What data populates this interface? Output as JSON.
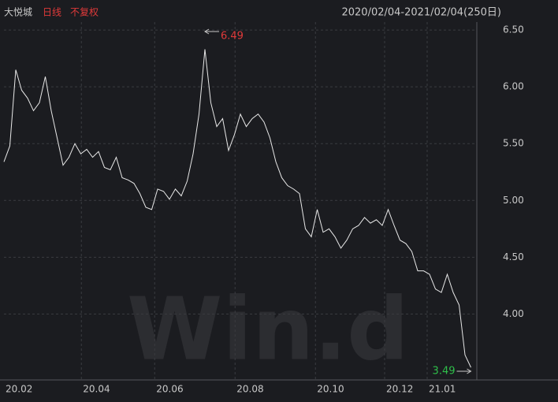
{
  "header": {
    "name": "大悦城",
    "period": "日线",
    "adjust": "不复权",
    "range": "2020/02/04-2021/02/04(250日)"
  },
  "watermark": "Win.d",
  "chart_data": {
    "type": "line",
    "grid": true,
    "color": "#e8e8e8",
    "max_label": "6.49",
    "min_label": "3.49",
    "values": [
      5.34,
      5.48,
      6.15,
      5.97,
      5.9,
      5.79,
      5.86,
      6.09,
      5.79,
      5.55,
      5.31,
      5.38,
      5.5,
      5.41,
      5.45,
      5.38,
      5.43,
      5.29,
      5.27,
      5.38,
      5.2,
      5.18,
      5.15,
      5.06,
      4.94,
      4.92,
      5.1,
      5.08,
      5.01,
      5.1,
      5.04,
      5.17,
      5.41,
      5.76,
      6.33,
      5.86,
      5.65,
      5.72,
      5.44,
      5.58,
      5.76,
      5.65,
      5.72,
      5.76,
      5.69,
      5.55,
      5.34,
      5.2,
      5.13,
      5.1,
      5.06,
      4.75,
      4.68,
      4.92,
      4.72,
      4.75,
      4.68,
      4.58,
      4.65,
      4.75,
      4.78,
      4.85,
      4.8,
      4.83,
      4.78,
      4.92,
      4.78,
      4.65,
      4.62,
      4.55,
      4.38,
      4.38,
      4.35,
      4.22,
      4.19,
      4.35,
      4.19,
      4.08,
      3.64,
      3.53
    ],
    "xlim": [
      0,
      80
    ],
    "xticks": [
      {
        "value": 0,
        "label": "20.02"
      },
      {
        "value": 13.1,
        "label": "20.04"
      },
      {
        "value": 25.5,
        "label": "20.06"
      },
      {
        "value": 39.1,
        "label": "20.08"
      },
      {
        "value": 52.7,
        "label": "20.10"
      },
      {
        "value": 64.4,
        "label": "20.12"
      },
      {
        "value": 71.6,
        "label": "21.01"
      }
    ],
    "ylim": [
      3.42,
      6.57
    ],
    "yticks": [
      {
        "value": 4.0,
        "label": "4.00"
      },
      {
        "value": 4.5,
        "label": "4.50"
      },
      {
        "value": 5.0,
        "label": "5.00"
      },
      {
        "value": 5.5,
        "label": "5.50"
      },
      {
        "value": 6.0,
        "label": "6.00"
      },
      {
        "value": 6.5,
        "label": "6.50"
      }
    ]
  }
}
